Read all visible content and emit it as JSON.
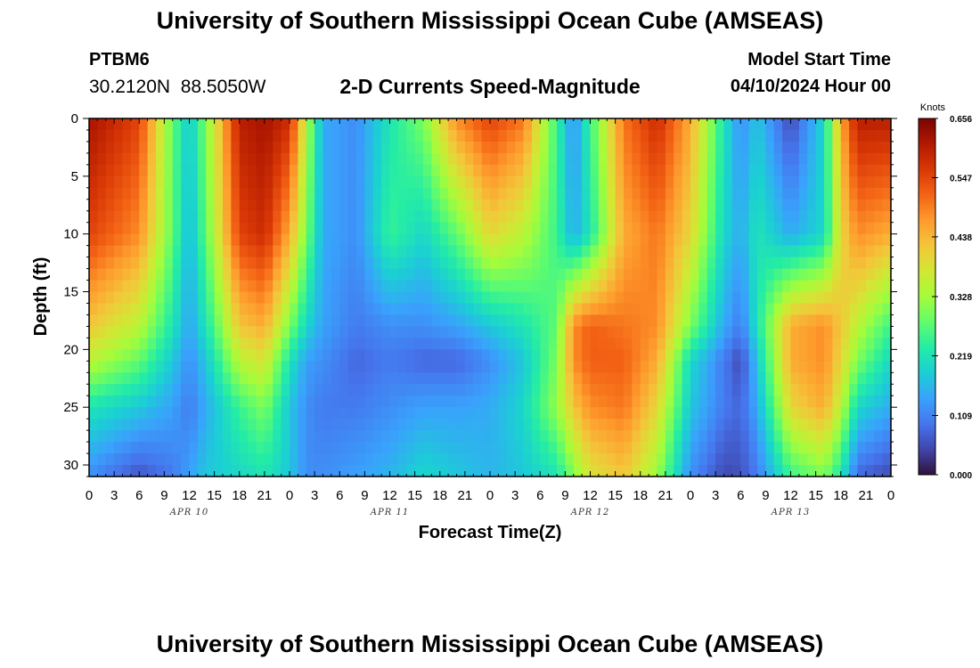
{
  "header": {
    "title": "University of Southern Mississippi Ocean Cube (AMSEAS)",
    "station_id": "PTBM6",
    "station_coords": "30.2120N  88.5050W",
    "subtitle": "2-D Currents Speed-Magnitude",
    "model_start_label": "Model Start Time",
    "model_start_value": "04/10/2024 Hour 00"
  },
  "footer": {
    "title": "University of Southern Mississippi Ocean Cube (AMSEAS)"
  },
  "chart_data": {
    "type": "heatmap",
    "title": "2-D Currents Speed-Magnitude",
    "xlabel": "Forecast Time(Z)",
    "ylabel": "Depth (ft)",
    "x_tick_labels": [
      "0",
      "3",
      "6",
      "9",
      "12",
      "15",
      "18",
      "21",
      "0",
      "3",
      "6",
      "9",
      "12",
      "15",
      "18",
      "21",
      "0",
      "3",
      "6",
      "9",
      "12",
      "15",
      "18",
      "21",
      "0",
      "3",
      "6",
      "9",
      "12",
      "15",
      "18",
      "21",
      "0"
    ],
    "day_labels": [
      "APR 10",
      "APR 11",
      "APR 12",
      "APR 13"
    ],
    "y_ticks": [
      0,
      5,
      10,
      15,
      20,
      25,
      30
    ],
    "y_tick_labels": [
      "0",
      "5",
      "10",
      "15",
      "20",
      "25",
      "30"
    ],
    "ylim": [
      0,
      31
    ],
    "x_range_hours": [
      0,
      96
    ],
    "colorbar": {
      "label": "Knots",
      "range": [
        0.0,
        0.656
      ],
      "tick_values": [
        0.656,
        0.547,
        0.438,
        0.328,
        0.219,
        0.109,
        0.0
      ],
      "tick_labels": [
        "0.656",
        "0.547",
        "0.438",
        "0.328",
        "0.219",
        "0.109",
        "0.000"
      ],
      "colors": [
        "#30123b",
        "#4145ab",
        "#4675ed",
        "#39a2fc",
        "#1bcfd4",
        "#24eca6",
        "#61fc6c",
        "#a4fc3b",
        "#d1e834",
        "#f3c63a",
        "#fe9b2d",
        "#f36315",
        "#d93806",
        "#b11901",
        "#7a0403"
      ]
    },
    "depth_levels_ft": [
      0,
      10,
      18,
      21,
      25,
      31
    ],
    "time_hours": [
      0,
      6,
      10,
      12,
      14,
      18,
      21,
      24,
      26,
      28,
      32,
      36,
      40,
      44,
      48,
      52,
      56,
      58,
      60,
      64,
      68,
      72,
      76,
      78,
      80,
      84,
      88,
      90,
      92,
      96
    ],
    "speed_knots_by_depth": [
      [
        0.62,
        0.55,
        0.28,
        0.18,
        0.3,
        0.6,
        0.62,
        0.58,
        0.35,
        0.15,
        0.12,
        0.22,
        0.3,
        0.48,
        0.55,
        0.5,
        0.25,
        0.12,
        0.25,
        0.5,
        0.58,
        0.45,
        0.22,
        0.12,
        0.18,
        0.05,
        0.2,
        0.45,
        0.6,
        0.6
      ],
      [
        0.55,
        0.48,
        0.28,
        0.16,
        0.28,
        0.55,
        0.58,
        0.45,
        0.3,
        0.15,
        0.12,
        0.25,
        0.2,
        0.28,
        0.4,
        0.35,
        0.25,
        0.15,
        0.22,
        0.45,
        0.5,
        0.4,
        0.2,
        0.15,
        0.22,
        0.15,
        0.2,
        0.4,
        0.48,
        0.45
      ],
      [
        0.42,
        0.35,
        0.22,
        0.14,
        0.22,
        0.42,
        0.45,
        0.3,
        0.2,
        0.14,
        0.1,
        0.12,
        0.12,
        0.14,
        0.18,
        0.22,
        0.28,
        0.48,
        0.52,
        0.5,
        0.48,
        0.3,
        0.15,
        0.1,
        0.22,
        0.45,
        0.48,
        0.42,
        0.35,
        0.25
      ],
      [
        0.35,
        0.28,
        0.18,
        0.12,
        0.18,
        0.35,
        0.38,
        0.22,
        0.14,
        0.12,
        0.08,
        0.1,
        0.08,
        0.08,
        0.12,
        0.18,
        0.3,
        0.48,
        0.52,
        0.52,
        0.45,
        0.2,
        0.1,
        0.05,
        0.18,
        0.45,
        0.48,
        0.4,
        0.3,
        0.2
      ],
      [
        0.22,
        0.18,
        0.14,
        0.1,
        0.15,
        0.25,
        0.3,
        0.18,
        0.12,
        0.1,
        0.1,
        0.12,
        0.14,
        0.14,
        0.15,
        0.2,
        0.32,
        0.42,
        0.48,
        0.5,
        0.4,
        0.18,
        0.1,
        0.08,
        0.15,
        0.4,
        0.45,
        0.35,
        0.2,
        0.15
      ],
      [
        0.12,
        0.06,
        0.1,
        0.14,
        0.18,
        0.2,
        0.22,
        0.18,
        0.12,
        0.12,
        0.14,
        0.16,
        0.2,
        0.18,
        0.16,
        0.18,
        0.22,
        0.3,
        0.38,
        0.42,
        0.32,
        0.12,
        0.05,
        0.06,
        0.1,
        0.25,
        0.3,
        0.22,
        0.08,
        0.05
      ]
    ]
  }
}
